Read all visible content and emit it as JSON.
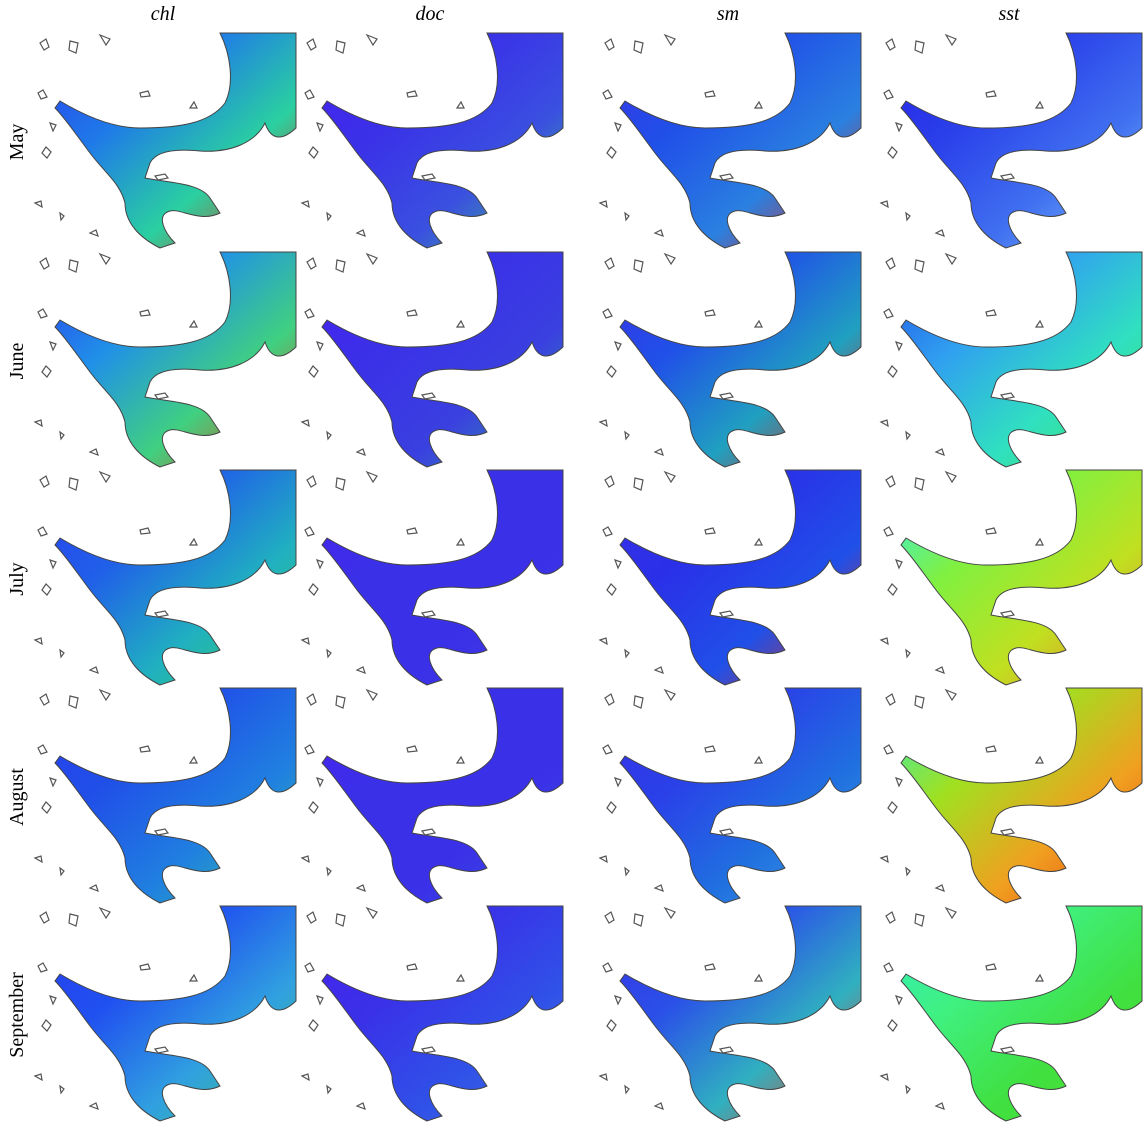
{
  "columns": [
    "chl",
    "doc",
    "sm",
    "sst"
  ],
  "rows": [
    "May",
    "June",
    "July",
    "August",
    "September"
  ]
}
